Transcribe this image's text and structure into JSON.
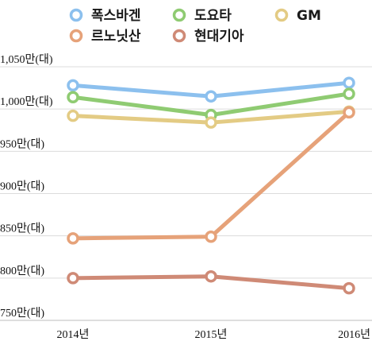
{
  "chart_data": {
    "type": "line",
    "title": "",
    "xlabel": "",
    "ylabel": "",
    "categories": [
      "2014년",
      "2015년",
      "2016년"
    ],
    "ylim": [
      750,
      1050
    ],
    "yticks": [
      750,
      800,
      850,
      900,
      950,
      1000,
      1050
    ],
    "ytick_labels": [
      "750만(대)",
      "800만(대)",
      "850만(대)",
      "900만(대)",
      "950만(대)",
      "1,000만(대)",
      "1,050만(대)"
    ],
    "grid": true,
    "legend_position": "top",
    "series": [
      {
        "name": "폭스바겐",
        "color": "#8cc0ee",
        "values": [
          1028,
          1015,
          1031
        ]
      },
      {
        "name": "도요타",
        "color": "#8fcb72",
        "values": [
          1014,
          993,
          1018
        ]
      },
      {
        "name": "GM",
        "color": "#e3cb84",
        "values": [
          992,
          984,
          997
        ]
      },
      {
        "name": "르노닛산",
        "color": "#e6a279",
        "values": [
          847,
          849,
          996
        ]
      },
      {
        "name": "현대기아",
        "color": "#cf8a76",
        "values": [
          800,
          802,
          788
        ]
      }
    ]
  }
}
